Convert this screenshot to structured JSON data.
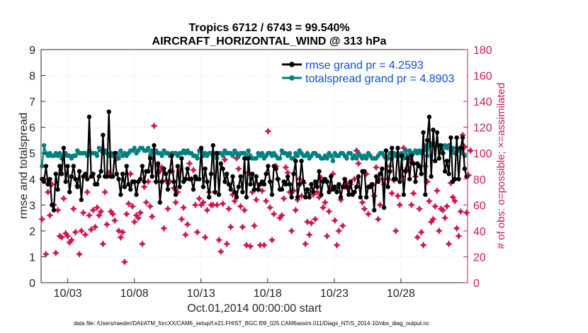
{
  "chart_data": {
    "type": "line",
    "title_line1": "Tropics 6712 / 6743 = 99.540%",
    "title_line2": "AIRCRAFT_HORIZONTAL_WIND @ 313 hPa",
    "xlabel": "Oct.01,2014 00:00:00 start",
    "ylabel_left": "rmse and totalspread",
    "ylabel_right": "# of obs: o=possible; ×=assimilated",
    "footer": "data file: /Users/raeder/DAI/ATM_forcXX/CAM6_setup/f.e21.FHIST_BGC.f09_025.CAM6assim.011/Diags_NTrS_2014-10/obs_diag_output.nc",
    "xlim": [
      1.0,
      33.0
    ],
    "ylim_left": [
      0,
      9
    ],
    "ylim_right": [
      0,
      180
    ],
    "x_ticks": [
      3,
      8,
      13,
      18,
      23,
      28
    ],
    "x_tick_labels": [
      "10/03",
      "10/08",
      "10/13",
      "10/18",
      "10/23",
      "10/28"
    ],
    "y_left_ticks": [
      "0",
      "1",
      "2",
      "3",
      "4",
      "5",
      "6",
      "7",
      "8",
      "9"
    ],
    "y_right_ticks": [
      "0",
      "20",
      "40",
      "60",
      "80",
      "100",
      "120",
      "140",
      "160",
      "180"
    ],
    "legend": [
      {
        "label": "rmse grand pr = 4.2593",
        "color": "#000000"
      },
      {
        "label": "totalspread grand pr = 4.8903",
        "color": "#00807f"
      }
    ],
    "colors": {
      "rmse": "#000000",
      "spread": "#00807f",
      "obs": "#cc1a52",
      "axis": "#262626",
      "right_axis": "#cc1a52",
      "legend_text": "#0b4fd8"
    },
    "series": [
      {
        "name": "rmse",
        "values": [
          4.0,
          3.9,
          4.5,
          3.8,
          4.0,
          3.0,
          2.8,
          4.2,
          3.6,
          4.5,
          4.2,
          5.2,
          3.9,
          4.5,
          3.5,
          4.1,
          4.5,
          4.0,
          3.7,
          4.3,
          3.2,
          4.1,
          4.2,
          4.0,
          6.4,
          4.1,
          4.2,
          3.8,
          3.8,
          4.1,
          4.3,
          5.7,
          4.1,
          4.1,
          6.6,
          4.1,
          4.1,
          5.0,
          4.2,
          4.0,
          3.4,
          4.2,
          3.7,
          4.5,
          3.8,
          3.6,
          3.9,
          3.9,
          3.4,
          3.9,
          4.0,
          4.5,
          3.9,
          4.3,
          4.3,
          4.8,
          4.1,
          5.3,
          3.9,
          4.6,
          3.1,
          3.9,
          4.4,
          4.2,
          3.6,
          4.3,
          4.9,
          3.9,
          3.4,
          4.5,
          3.7,
          4.8,
          3.9,
          4.0,
          4.4,
          4.0,
          4.0,
          3.6,
          4.1,
          4.0,
          4.0,
          5.2,
          3.7,
          4.4,
          3.9,
          3.3,
          4.2,
          5.3,
          3.5,
          5.0,
          3.4,
          4.6,
          4.4,
          3.9,
          4.2,
          3.8,
          3.6,
          4.1,
          3.5,
          3.3,
          3.7,
          4.1,
          3.5,
          4.8,
          3.3,
          4.8,
          3.8,
          4.2,
          3.6,
          4.1,
          3.6,
          3.8,
          3.9,
          3.8,
          4.2,
          4.5,
          3.9,
          3.4,
          4.5,
          4.4,
          4.0,
          3.6,
          3.6,
          3.9,
          3.8,
          4.1,
          3.8,
          3.3,
          4.2,
          4.7,
          3.3,
          3.8,
          4.7,
          3.9,
          3.3,
          3.6,
          3.3,
          3.8,
          3.5,
          3.9,
          3.7,
          4.3,
          3.4,
          3.9,
          4.0,
          3.9,
          3.5,
          4.1,
          3.6,
          3.7,
          3.5,
          3.8,
          3.3,
          3.7,
          4.0,
          3.7,
          3.4,
          3.9,
          3.4,
          3.5,
          3.7,
          4.1,
          3.3,
          4.3,
          4.3,
          3.3,
          3.7,
          3.7,
          3.8,
          2.8,
          4.1,
          3.9,
          4.2,
          4.4,
          2.9,
          5.1,
          3.7,
          4.3,
          5.2,
          4.0,
          4.0,
          5.2,
          3.9,
          4.9,
          3.4,
          4.3,
          4.8,
          4.0,
          4.9,
          4.6,
          3.9,
          4.6,
          4.5,
          4.2,
          5.8,
          3.4,
          5.5,
          6.4,
          4.1,
          5.9,
          4.7,
          5.8,
          4.8,
          5.3,
          5.0,
          4.3,
          4.7,
          4.2,
          5.6,
          3.9,
          4.0,
          5.6,
          4.0,
          5.2,
          5.6,
          4.4,
          4.1
        ]
      },
      {
        "name": "totalspread",
        "values": [
          4.5,
          5.3,
          5.0,
          4.9,
          5.0,
          4.9,
          4.9,
          5.0,
          4.9,
          5.0,
          4.8,
          4.9,
          5.0,
          4.9,
          4.9,
          4.8,
          4.9,
          4.9,
          5.1,
          5.0,
          5.0,
          5.0,
          5.0,
          4.9,
          5.1,
          5.0,
          5.0,
          5.0,
          4.9,
          5.2,
          5.1,
          5.0,
          5.1,
          5.0,
          4.9,
          5.0,
          4.9,
          5.0,
          5.0,
          4.8,
          5.1,
          4.9,
          5.0,
          4.9,
          5.0,
          5.1,
          5.1,
          5.2,
          5.0,
          5.1,
          5.2,
          5.2,
          5.1,
          5.1,
          5.2,
          4.9,
          5.1,
          5.0,
          5.1,
          5.0,
          5.0,
          4.9,
          5.1,
          5.0,
          5.0,
          4.9,
          5.0,
          5.0,
          5.0,
          4.9,
          5.0,
          5.0,
          5.1,
          5.0,
          5.1,
          5.0,
          5.0,
          4.9,
          4.9,
          4.8,
          5.1,
          5.1,
          4.9,
          5.0,
          4.9,
          5.0,
          5.0,
          4.9,
          5.0,
          4.8,
          5.0,
          5.0,
          4.9,
          5.1,
          5.0,
          5.0,
          5.0,
          4.9,
          5.1,
          5.0,
          4.9,
          5.0,
          5.0,
          5.0,
          4.8,
          5.1,
          4.9,
          4.8,
          4.8,
          4.8,
          5.0,
          4.9,
          5.0,
          4.8,
          4.9,
          5.0,
          5.0,
          4.9,
          5.0,
          4.9,
          4.8,
          4.8,
          5.1,
          5.0,
          5.0,
          4.9,
          5.0,
          4.8,
          4.8,
          5.0,
          4.9,
          5.1,
          5.0,
          4.9,
          4.9,
          5.0,
          4.8,
          4.9,
          5.0,
          5.0,
          4.9,
          4.9,
          4.8,
          4.8,
          4.9,
          4.8,
          5.0,
          4.9,
          4.7,
          5.0,
          4.9,
          4.9,
          5.0,
          5.0,
          4.9,
          4.8,
          5.0,
          5.0,
          4.8,
          4.9,
          4.8,
          5.0,
          4.9,
          4.8,
          4.9,
          4.8,
          5.0,
          4.9,
          4.8,
          4.8,
          4.8,
          4.9,
          5.0,
          5.0,
          4.9,
          4.9,
          4.8,
          5.0,
          4.8,
          5.0,
          4.9,
          5.0,
          4.9,
          5.0,
          4.8,
          5.1,
          4.9,
          5.1,
          5.0,
          5.0,
          5.1,
          5.0,
          5.1,
          5.0,
          5.1,
          5.3,
          4.9,
          5.4,
          5.3,
          5.4,
          5.3,
          5.3,
          5.3,
          5.2,
          5.0,
          5.3,
          5.2,
          5.3,
          5.1,
          5.2,
          5.0,
          5.2,
          5.1,
          5.1,
          5.0,
          4.9
        ]
      },
      {
        "name": "obs_assimilated",
        "values": [
          49,
          80,
          22,
          70,
          52,
          76,
          60,
          23,
          56,
          36,
          35,
          65,
          38,
          36,
          31,
          33,
          57,
          39,
          75,
          22,
          40,
          54,
          37,
          70,
          52,
          41,
          56,
          43,
          58,
          52,
          55,
          30,
          70,
          45,
          85,
          55,
          53,
          48,
          96,
          40,
          35,
          39,
          16,
          53,
          61,
          84,
          59,
          47,
          52,
          50,
          54,
          30,
          74,
          62,
          78,
          59,
          51,
          121,
          78,
          90,
          86,
          89,
          42,
          79,
          57,
          78,
          86,
          73,
          62,
          70,
          86,
          49,
          58,
          37,
          45,
          92,
          80,
          87,
          60,
          39,
          65,
          60,
          62,
          35,
          56,
          70,
          60,
          60,
          70,
          60,
          33,
          24,
          61,
          95,
          30,
          57,
          43,
          68,
          63,
          96,
          88,
          59,
          43,
          56,
          29,
          85,
          28,
          70,
          44,
          64,
          72,
          29,
          71,
          29,
          63,
          117,
          58,
          33,
          53,
          90,
          80,
          50,
          52,
          65,
          89,
          85,
          70,
          40,
          71,
          56,
          64,
          80,
          67,
          77,
          30,
          47,
          37,
          46,
          68,
          49,
          70,
          66,
          81,
          58,
          62,
          36,
          55,
          73,
          84,
          48,
          29,
          40,
          64,
          44,
          74,
          77,
          73,
          76,
          69,
          80,
          102,
          92,
          98,
          62,
          57,
          84,
          53,
          75,
          75,
          67,
          89,
          49,
          60,
          80,
          76,
          96,
          80,
          90,
          69,
          79,
          40,
          67,
          60,
          82,
          104,
          87,
          89,
          94,
          60,
          69,
          82,
          35,
          57,
          39,
          29,
          90,
          78,
          63,
          47,
          49,
          59,
          71,
          40,
          57,
          56,
          50,
          59,
          30,
          77,
          66,
          63,
          42,
          36,
          55,
          114,
          105,
          54,
          83,
          102
        ]
      },
      {
        "name": "obs_possible",
        "values": [
          49,
          80,
          22,
          70,
          52,
          76,
          60,
          23,
          56,
          36,
          35,
          65,
          38,
          36,
          31,
          33,
          57,
          39,
          75,
          22,
          40,
          54,
          37,
          70,
          52,
          41,
          56,
          43,
          58,
          52,
          55,
          30,
          70,
          45,
          85,
          55,
          53,
          48,
          96,
          40,
          35,
          39,
          16,
          53,
          61,
          84,
          59,
          47,
          52,
          50,
          54,
          30,
          74,
          62,
          78,
          59,
          51,
          121,
          78,
          90,
          86,
          89,
          42,
          79,
          57,
          78,
          86,
          73,
          62,
          70,
          86,
          49,
          58,
          37,
          45,
          92,
          80,
          87,
          60,
          39,
          65,
          60,
          62,
          35,
          56,
          70,
          60,
          60,
          70,
          60,
          33,
          24,
          61,
          95,
          30,
          57,
          43,
          68,
          63,
          96,
          88,
          59,
          43,
          56,
          29,
          85,
          28,
          70,
          44,
          64,
          72,
          29,
          71,
          29,
          63,
          117,
          58,
          33,
          53,
          90,
          80,
          50,
          52,
          65,
          89,
          85,
          70,
          40,
          71,
          56,
          64,
          80,
          67,
          77,
          30,
          47,
          37,
          46,
          68,
          49,
          70,
          66,
          81,
          58,
          62,
          36,
          55,
          73,
          84,
          48,
          29,
          40,
          64,
          44,
          74,
          77,
          73,
          76,
          69,
          80,
          102,
          92,
          98,
          62,
          57,
          84,
          53,
          75,
          75,
          67,
          89,
          49,
          60,
          80,
          76,
          96,
          80,
          90,
          69,
          79,
          40,
          67,
          60,
          82,
          104,
          87,
          89,
          94,
          60,
          69,
          82,
          35,
          57,
          39,
          29,
          90,
          78,
          63,
          47,
          49,
          59,
          71,
          40,
          57,
          56,
          50,
          59,
          30,
          77,
          66,
          63,
          42,
          36,
          55,
          114,
          105,
          54,
          83,
          102
        ]
      }
    ]
  }
}
